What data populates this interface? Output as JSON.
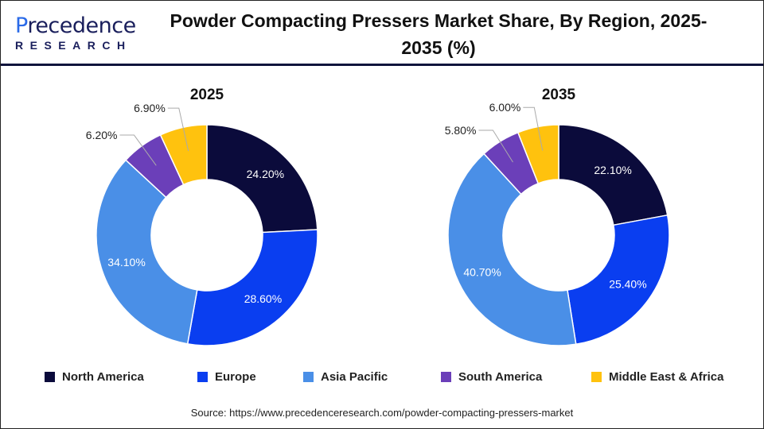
{
  "logo": {
    "line1_prefix": "P",
    "line1_rest": "recedence",
    "line2": "RESEARCH"
  },
  "title": "Powder Compacting Pressers Market Share, By Region, 2025-2035 (%)",
  "colors": {
    "North America": "#0b0b3b",
    "Europe": "#0a3ef0",
    "Asia Pacific": "#4a8fe7",
    "South America": "#6b3fb9",
    "Middle East & Africa": "#ffc20e"
  },
  "chart_data": [
    {
      "type": "pie",
      "title": "2025",
      "categories": [
        "North America",
        "Europe",
        "Asia Pacific",
        "South America",
        "Middle East & Africa"
      ],
      "values": [
        24.2,
        28.6,
        34.1,
        6.2,
        6.9
      ],
      "labels": [
        "24.20%",
        "28.60%",
        "34.10%",
        "6.20%",
        "6.90%"
      ]
    },
    {
      "type": "pie",
      "title": "2035",
      "categories": [
        "North America",
        "Europe",
        "Asia Pacific",
        "South America",
        "Middle East & Africa"
      ],
      "values": [
        22.1,
        25.4,
        40.7,
        5.8,
        6.0
      ],
      "labels": [
        "22.10%",
        "25.40%",
        "40.70%",
        "5.80%",
        "6.00%"
      ]
    }
  ],
  "legend": [
    "North America",
    "Europe",
    "Asia Pacific",
    "South America",
    "Middle East & Africa"
  ],
  "source": "Source: https://www.precedenceresearch.com/powder-compacting-pressers-market"
}
